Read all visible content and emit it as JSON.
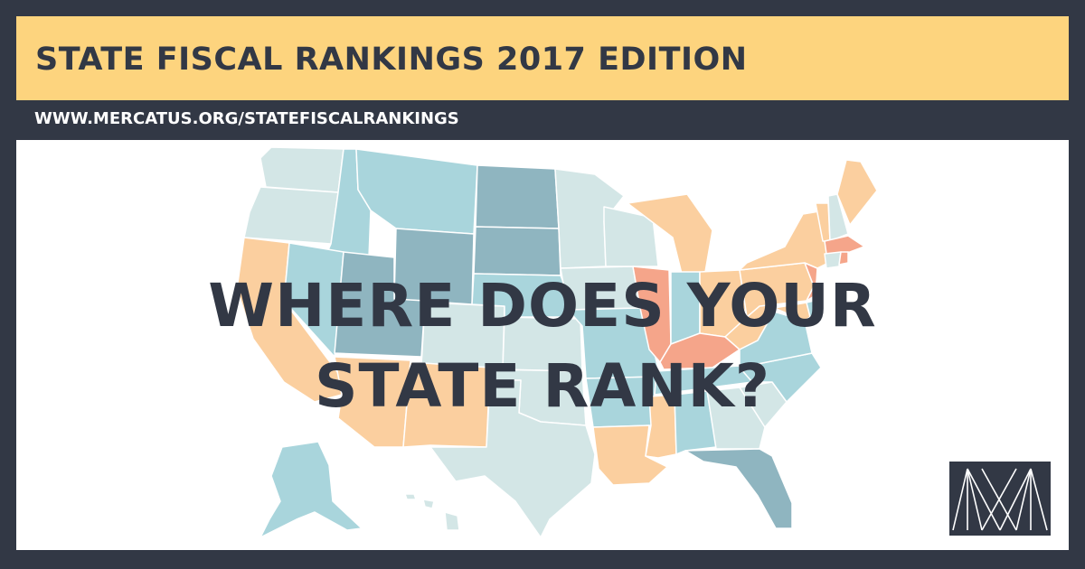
{
  "header": {
    "title": "STATE FISCAL RANKINGS 2017 EDITION",
    "url": "WWW.MERCATUS.ORG/STATEFISCALRANKINGS"
  },
  "headline": {
    "line1": "WHERE DOES YOUR",
    "line2": "STATE RANK?"
  },
  "colors": {
    "frame": "#323845",
    "banner": "#fdd47e",
    "map_light": "#d3e6e6",
    "map_medium": "#a9d5dc",
    "map_dark": "#8fb5c0",
    "map_orange": "#fbcf9f",
    "map_salmon": "#f5a58a"
  },
  "logo": {
    "icon": "mercatus-logo-icon"
  }
}
